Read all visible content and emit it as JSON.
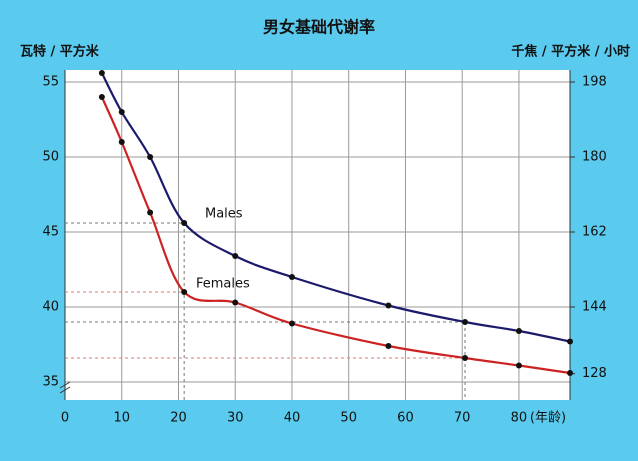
{
  "chart_data": {
    "type": "line",
    "title": "男女基础代谢率",
    "y_label": "瓦特 / 平方米",
    "y2_label": "千焦 / 平方米 / 小时",
    "x_label": "(年龄)",
    "x": [
      6.5,
      10,
      15,
      21,
      30,
      40,
      57,
      70.5,
      80,
      89
    ],
    "series": [
      {
        "name": "Males",
        "color": "#1c1a6b",
        "values": [
          55.6,
          53.0,
          50.0,
          45.6,
          43.4,
          42.0,
          40.1,
          39.0,
          38.4,
          37.7
        ]
      },
      {
        "name": "Females",
        "color": "#cc2222",
        "values": [
          54.0,
          51.0,
          46.3,
          41.0,
          40.3,
          38.9,
          37.4,
          36.6,
          36.1,
          35.6
        ]
      }
    ],
    "xlim": [
      0,
      89
    ],
    "xticks": [
      0,
      10,
      20,
      30,
      40,
      50,
      60,
      70,
      80
    ],
    "ylim": [
      33.8,
      55.8
    ],
    "yticks": [
      35,
      40,
      45,
      50,
      55
    ],
    "y2lim": [
      121.68,
      200.88
    ],
    "y2ticks": [
      128,
      144,
      162,
      180,
      198
    ],
    "grid": true
  }
}
